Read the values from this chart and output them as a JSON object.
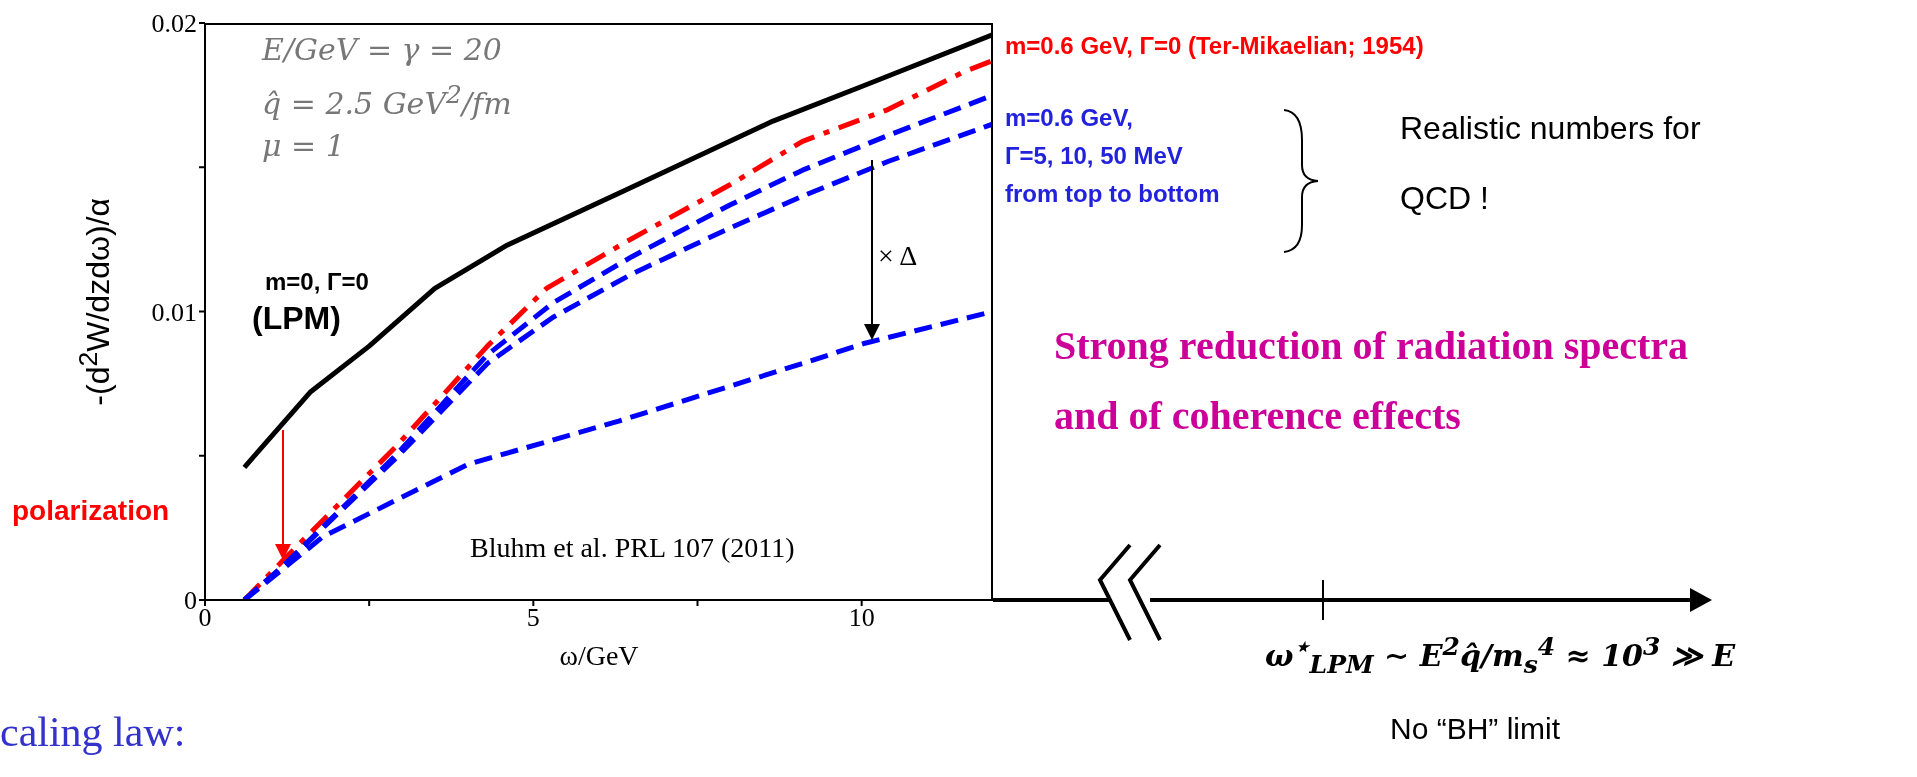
{
  "chart_data": {
    "type": "line",
    "xlabel": "ω/GeV",
    "ylabel": "-(d$^{2}$W/dzdω)/α",
    "xlim": [
      0,
      12
    ],
    "xticks": [
      0,
      {
        "value": 2.5,
        "label": null
      },
      5,
      {
        "value": 7.5,
        "label": null
      },
      10
    ],
    "ylim": [
      0,
      0.02
    ],
    "yticks": [
      0,
      {
        "value": 0.005,
        "label": null
      },
      0.01,
      {
        "value": 0.015,
        "label": null
      },
      0.02
    ],
    "marker": "none",
    "series": [
      {
        "color": "#000000",
        "line_style": "solid",
        "x": [
          0.6,
          1.6,
          2.5,
          3.5,
          4.6,
          6.4,
          8.65,
          10,
          12
        ],
        "values": [
          0.0046,
          0.0072,
          0.0088,
          0.0108,
          0.0123,
          0.0142,
          0.0166,
          0.0178,
          0.0196
        ]
      },
      {
        "color": "#ff0000",
        "line_style": "dashdot",
        "x": [
          0.6,
          1.2,
          2.9,
          4.3,
          5.2,
          6.4,
          8,
          9.1,
          10.4,
          11.55,
          12
        ],
        "values": [
          0,
          0.0014,
          0.0053,
          0.0088,
          0.0108,
          0.0124,
          0.0144,
          0.0159,
          0.017,
          0.0183,
          0.0187
        ]
      },
      {
        "color": "#0000ff",
        "line_style": "dashed",
        "x": [
          0.6,
          1.2,
          2.9,
          4.3,
          5.3,
          6.5,
          8,
          9.1,
          10.4,
          12
        ],
        "values": [
          0,
          0.0012,
          0.005,
          0.0085,
          0.0103,
          0.0119,
          0.0137,
          0.0149,
          0.0161,
          0.0175
        ]
      },
      {
        "color": "#0000ff",
        "line_style": "dashed",
        "x": [
          0.6,
          1.2,
          2.9,
          4.3,
          5.3,
          6.5,
          8,
          9.1,
          10.4,
          12
        ],
        "values": [
          0,
          0.0012,
          0.0049,
          0.0082,
          0.0098,
          0.0113,
          0.0129,
          0.014,
          0.0152,
          0.0165
        ]
      },
      {
        "color": "#0000ff",
        "line_style": "dashed",
        "x": [
          0.6,
          1.8,
          4,
          6.3,
          9.1,
          10.05,
          12
        ],
        "values": [
          0,
          0.0022,
          0.0047,
          0.0062,
          0.0082,
          0.0089,
          0.01
        ]
      }
    ],
    "annotations": [
      "E/GeV = γ = 20",
      "q̂ = 2.5 GeV$^{2}$/fm",
      "μ = 1",
      "m=0, Γ=0",
      "(LPM)",
      "polarization",
      "Bluhm et al. PRL 107 (2011)",
      "× Δ",
      "m=0.6 GeV, Γ=0 (Ter-Mikaelian; 1954)",
      "m=0.6 GeV,",
      "Γ=5, 10, 50 MeV",
      "from top to bottom",
      "Realistic numbers for",
      "QCD !",
      "Strong reduction of radiation spectra",
      "and of coherence effects",
      "ω$^{⋆}$$_{LPM}$ ∼ E$^{2}$q̂/m$_{s}$$^{4}$ ≈ 10$^{3}$ ≫ E",
      "No “BH” limit",
      "caling law:"
    ]
  }
}
